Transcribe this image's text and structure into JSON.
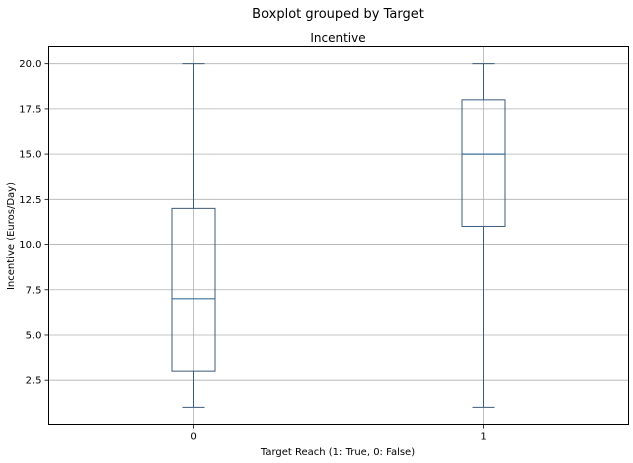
{
  "chart_data": {
    "type": "boxplot",
    "suptitle": "Boxplot grouped by Target",
    "title": "Incentive",
    "xlabel": "Target Reach (1: True, 0: False)",
    "ylabel": "Incentive (Euros/Day)",
    "categories": [
      "0",
      "1"
    ],
    "boxes": [
      {
        "category": "0",
        "whisker_low": 1.0,
        "q1": 3.0,
        "median": 7.0,
        "q3": 12.0,
        "whisker_high": 20.0
      },
      {
        "category": "1",
        "whisker_low": 1.0,
        "q1": 11.0,
        "median": 15.0,
        "q3": 18.0,
        "whisker_high": 20.0
      }
    ],
    "ylim": [
      0.05,
      20.95
    ],
    "yticks": [
      2.5,
      5.0,
      7.5,
      10.0,
      12.5,
      15.0,
      17.5,
      20.0
    ],
    "ytick_labels": [
      "2.5",
      "5.0",
      "7.5",
      "10.0",
      "12.5",
      "15.0",
      "17.5",
      "20.0"
    ],
    "grid": true,
    "colors": {
      "box": "#3b5b7a",
      "median": "#3b6fa0",
      "grid": "#b0b0b0"
    }
  }
}
